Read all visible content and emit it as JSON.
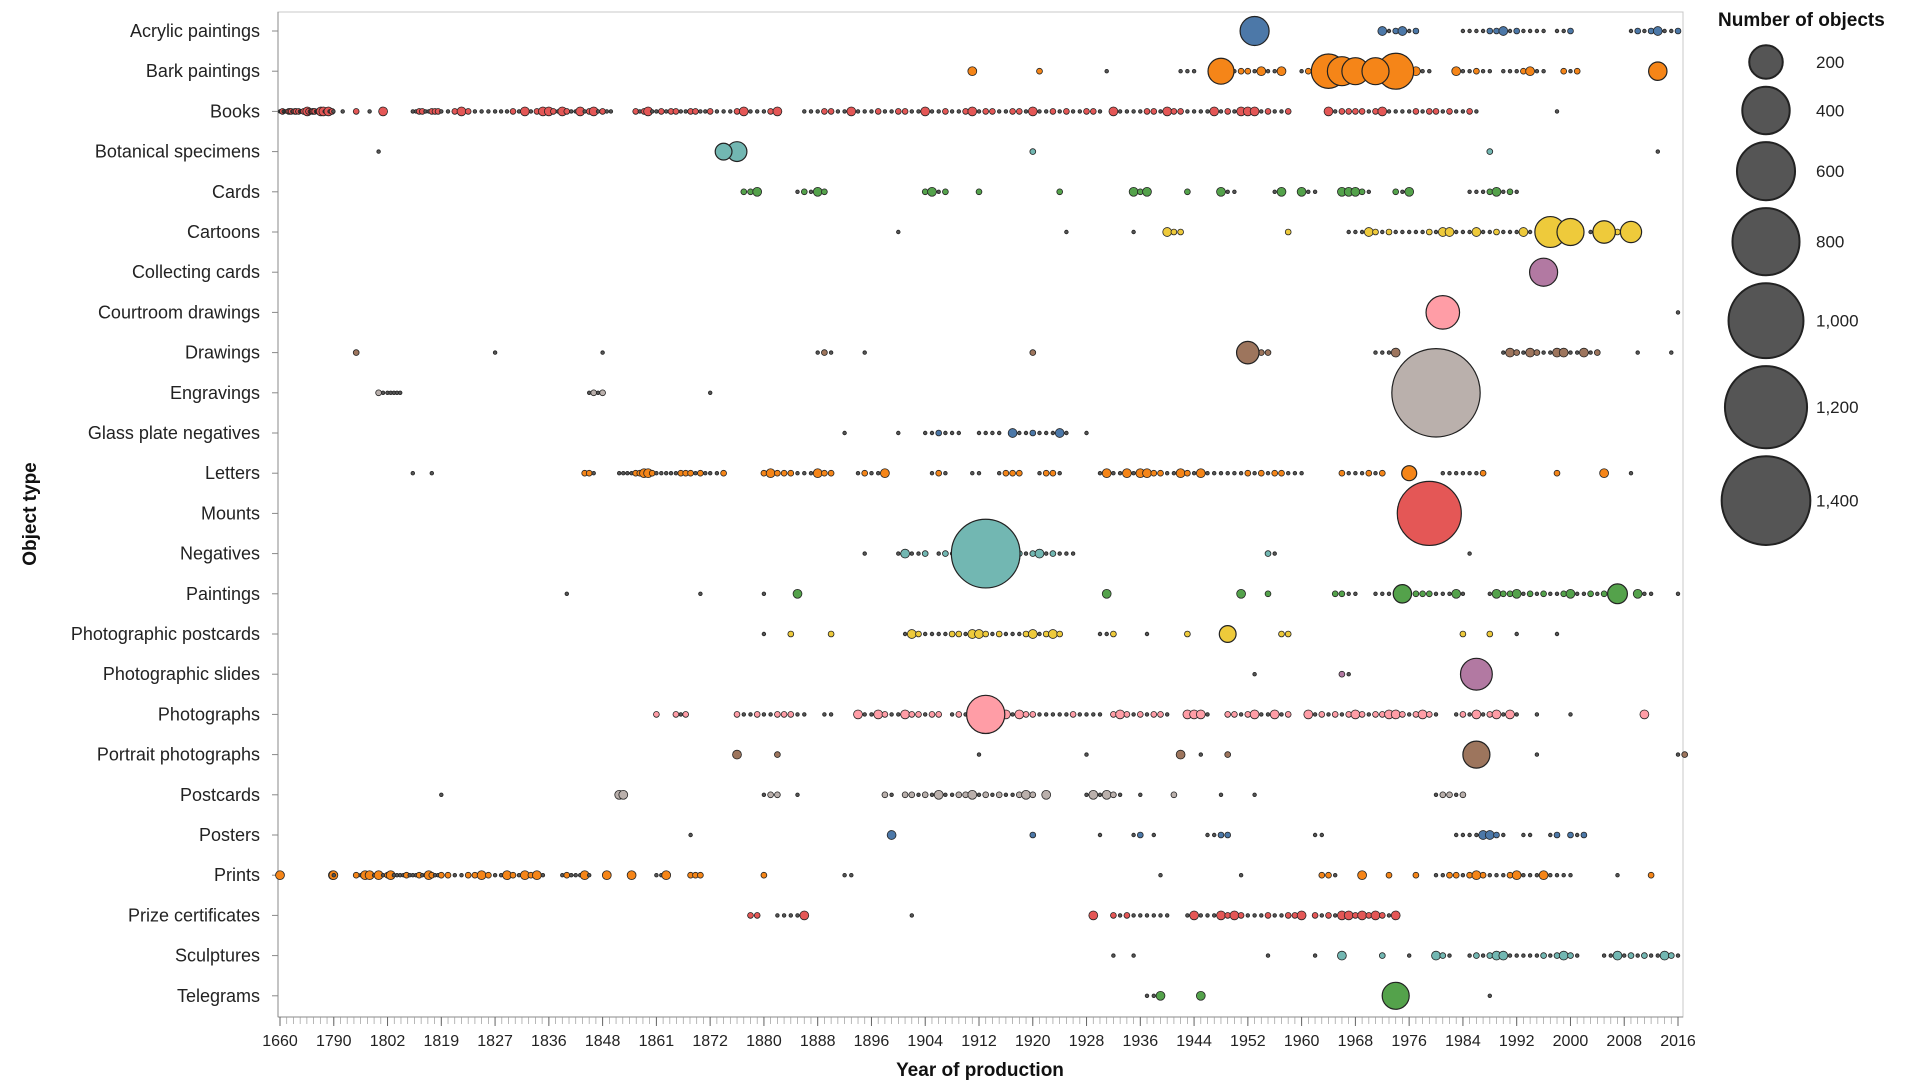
{
  "chart_data": {
    "type": "scatter",
    "title": "",
    "xlabel": "Year of production",
    "ylabel": "Object type",
    "x_tick_labels": [
      "1660",
      "1790",
      "1802",
      "1819",
      "1827",
      "1836",
      "1848",
      "1861",
      "1872",
      "1880",
      "1888",
      "1896",
      "1904",
      "1912",
      "1920",
      "1928",
      "1936",
      "1944",
      "1952",
      "1960",
      "1968",
      "1976",
      "1984",
      "1992",
      "2000",
      "2008",
      "2016"
    ],
    "categories": [
      "Acrylic paintings",
      "Bark paintings",
      "Books",
      "Botanical specimens",
      "Cards",
      "Cartoons",
      "Collecting cards",
      "Courtroom drawings",
      "Drawings",
      "Engravings",
      "Glass plate negatives",
      "Letters",
      "Mounts",
      "Negatives",
      "Paintings",
      "Photographic postcards",
      "Photographic slides",
      "Photographs",
      "Portrait photographs",
      "Postcards",
      "Posters",
      "Prints",
      "Prize certificates",
      "Sculptures",
      "Telegrams"
    ],
    "category_colors": [
      "#4c78a8",
      "#f58518",
      "#e45756",
      "#72b7b2",
      "#54a24b",
      "#eeca3b",
      "#b279a2",
      "#ff9da6",
      "#9d755d",
      "#bab0ac",
      "#4c78a8",
      "#f58518",
      "#e45756",
      "#72b7b2",
      "#54a24b",
      "#eeca3b",
      "#b279a2",
      "#ff9da6",
      "#9d755d",
      "#bab0ac",
      "#4c78a8",
      "#f58518",
      "#e45756",
      "#72b7b2",
      "#54a24b"
    ],
    "legend": {
      "title": "Number of objects",
      "values": [
        200,
        400,
        600,
        800,
        1000,
        1200,
        1400
      ],
      "labels": [
        "200",
        "400",
        "600",
        "800",
        "1,000",
        "1,200",
        "1,400"
      ]
    },
    "big_points": [
      {
        "category": "Acrylic paintings",
        "year": 1953,
        "count": 150
      },
      {
        "category": "Bark paintings",
        "year": 1948,
        "count": 120
      },
      {
        "category": "Bark paintings",
        "year": 1964,
        "count": 210
      },
      {
        "category": "Bark paintings",
        "year": 1966,
        "count": 150
      },
      {
        "category": "Bark paintings",
        "year": 1968,
        "count": 130
      },
      {
        "category": "Bark paintings",
        "year": 1971,
        "count": 130
      },
      {
        "category": "Bark paintings",
        "year": 1974,
        "count": 230
      },
      {
        "category": "Bark paintings",
        "year": 2013,
        "count": 60
      },
      {
        "category": "Botanical specimens",
        "year": 1874,
        "count": 50
      },
      {
        "category": "Botanical specimens",
        "year": 1876,
        "count": 70
      },
      {
        "category": "Cartoons",
        "year": 1997,
        "count": 170
      },
      {
        "category": "Cartoons",
        "year": 2000,
        "count": 130
      },
      {
        "category": "Cartoons",
        "year": 2005,
        "count": 90
      },
      {
        "category": "Cartoons",
        "year": 2009,
        "count": 80
      },
      {
        "category": "Collecting cards",
        "year": 1996,
        "count": 140
      },
      {
        "category": "Courtroom drawings",
        "year": 1981,
        "count": 200
      },
      {
        "category": "Drawings",
        "year": 1952,
        "count": 90
      },
      {
        "category": "Engravings",
        "year": 1980,
        "count": 1390
      },
      {
        "category": "Letters",
        "year": 1976,
        "count": 40
      },
      {
        "category": "Mounts",
        "year": 1979,
        "count": 730
      },
      {
        "category": "Negatives",
        "year": 1913,
        "count": 840
      },
      {
        "category": "Paintings",
        "year": 1975,
        "count": 60
      },
      {
        "category": "Paintings",
        "year": 2007,
        "count": 70
      },
      {
        "category": "Photographic postcards",
        "year": 1949,
        "count": 50
      },
      {
        "category": "Photographic slides",
        "year": 1986,
        "count": 180
      },
      {
        "category": "Photographs",
        "year": 1913,
        "count": 260
      },
      {
        "category": "Portrait photographs",
        "year": 1986,
        "count": 130
      },
      {
        "category": "Telegrams",
        "year": 1974,
        "count": 130
      }
    ],
    "small_point_ranges": [
      {
        "category": "Acrylic paintings",
        "ranges": [
          [
            1972,
            1977
          ],
          [
            1984,
            1996
          ],
          [
            1998,
            2000
          ],
          [
            2009,
            2016
          ]
        ]
      },
      {
        "category": "Bark paintings",
        "ranges": [
          [
            1911,
            1911
          ],
          [
            1921,
            1921
          ],
          [
            1931,
            1931
          ],
          [
            1942,
            1944
          ],
          [
            1950,
            1957
          ],
          [
            1960,
            1979
          ],
          [
            1983,
            1988
          ],
          [
            1990,
            1996
          ],
          [
            1999,
            2001
          ]
        ]
      },
      {
        "category": "Books",
        "ranges": [
          [
            1660,
            1803
          ],
          [
            1810,
            1850
          ],
          [
            1856,
            1882
          ],
          [
            1886,
            1930
          ],
          [
            1932,
            1958
          ],
          [
            1964,
            1986
          ],
          [
            1998,
            1998
          ]
        ]
      },
      {
        "category": "Botanical specimens",
        "ranges": [
          [
            1800,
            1800
          ],
          [
            1920,
            1920
          ],
          [
            1988,
            1988
          ],
          [
            2013,
            2013
          ]
        ]
      },
      {
        "category": "Cards",
        "ranges": [
          [
            1877,
            1879
          ],
          [
            1885,
            1889
          ],
          [
            1904,
            1907
          ],
          [
            1912,
            1912
          ],
          [
            1924,
            1924
          ],
          [
            1935,
            1937
          ],
          [
            1943,
            1943
          ],
          [
            1948,
            1950
          ],
          [
            1956,
            1957
          ],
          [
            1960,
            1962
          ],
          [
            1966,
            1970
          ],
          [
            1974,
            1976
          ],
          [
            1985,
            1992
          ]
        ]
      },
      {
        "category": "Cartoons",
        "ranges": [
          [
            1900,
            1900
          ],
          [
            1925,
            1925
          ],
          [
            1935,
            1935
          ],
          [
            1940,
            1942
          ],
          [
            1958,
            1958
          ],
          [
            1967,
            1996
          ],
          [
            2003,
            2010
          ]
        ]
      },
      {
        "category": "Courtroom drawings",
        "ranges": [
          [
            2016,
            2016
          ]
        ]
      },
      {
        "category": "Drawings",
        "ranges": [
          [
            1795,
            1795
          ],
          [
            1827,
            1827
          ],
          [
            1848,
            1848
          ],
          [
            1888,
            1890
          ],
          [
            1895,
            1895
          ],
          [
            1920,
            1920
          ],
          [
            1954,
            1955
          ],
          [
            1971,
            1974
          ],
          [
            1990,
            2004
          ],
          [
            2010,
            2010
          ],
          [
            2015,
            2015
          ]
        ]
      },
      {
        "category": "Engravings",
        "ranges": [
          [
            1800,
            1806
          ],
          [
            1845,
            1848
          ],
          [
            1872,
            1872
          ]
        ]
      },
      {
        "category": "Glass plate negatives",
        "ranges": [
          [
            1892,
            1892
          ],
          [
            1900,
            1900
          ],
          [
            1904,
            1909
          ],
          [
            1912,
            1915
          ],
          [
            1917,
            1925
          ],
          [
            1928,
            1928
          ]
        ]
      },
      {
        "category": "Letters",
        "ranges": [
          [
            1810,
            1810
          ],
          [
            1816,
            1816
          ],
          [
            1844,
            1846
          ],
          [
            1852,
            1874
          ],
          [
            1880,
            1890
          ],
          [
            1894,
            1898
          ],
          [
            1905,
            1907
          ],
          [
            1911,
            1912
          ],
          [
            1915,
            1918
          ],
          [
            1921,
            1924
          ],
          [
            1930,
            1960
          ],
          [
            1966,
            1972
          ],
          [
            1981,
            1987
          ],
          [
            1998,
            1998
          ],
          [
            2005,
            2005
          ],
          [
            2009,
            2009
          ]
        ]
      },
      {
        "category": "Negatives",
        "ranges": [
          [
            1895,
            1895
          ],
          [
            1900,
            1904
          ],
          [
            1906,
            1910
          ],
          [
            1914,
            1926
          ],
          [
            1955,
            1956
          ],
          [
            1985,
            1985
          ]
        ]
      },
      {
        "category": "Paintings",
        "ranges": [
          [
            1840,
            1840
          ],
          [
            1870,
            1870
          ],
          [
            1880,
            1880
          ],
          [
            1885,
            1885
          ],
          [
            1931,
            1931
          ],
          [
            1951,
            1951
          ],
          [
            1955,
            1955
          ],
          [
            1965,
            1968
          ],
          [
            1971,
            1973
          ],
          [
            1977,
            1984
          ],
          [
            1988,
            2005
          ],
          [
            2010,
            2012
          ],
          [
            2016,
            2016
          ]
        ]
      },
      {
        "category": "Photographic postcards",
        "ranges": [
          [
            1880,
            1880
          ],
          [
            1884,
            1884
          ],
          [
            1890,
            1890
          ],
          [
            1901,
            1924
          ],
          [
            1930,
            1932
          ],
          [
            1937,
            1937
          ],
          [
            1943,
            1943
          ],
          [
            1957,
            1958
          ],
          [
            1984,
            1984
          ],
          [
            1988,
            1988
          ],
          [
            1992,
            1992
          ],
          [
            1998,
            1998
          ]
        ]
      },
      {
        "category": "Photographic slides",
        "ranges": [
          [
            1953,
            1953
          ],
          [
            1966,
            1967
          ]
        ]
      },
      {
        "category": "Photographs",
        "ranges": [
          [
            1861,
            1861
          ],
          [
            1865,
            1867
          ],
          [
            1876,
            1886
          ],
          [
            1889,
            1890
          ],
          [
            1894,
            1906
          ],
          [
            1908,
            1913
          ],
          [
            1916,
            1930
          ],
          [
            1932,
            1940
          ],
          [
            1943,
            1946
          ],
          [
            1949,
            1958
          ],
          [
            1961,
            1980
          ],
          [
            1983,
            1992
          ],
          [
            1995,
            1995
          ],
          [
            2000,
            2000
          ],
          [
            2011,
            2011
          ]
        ]
      },
      {
        "category": "Portrait photographs",
        "ranges": [
          [
            1876,
            1876
          ],
          [
            1882,
            1882
          ],
          [
            1912,
            1912
          ],
          [
            1928,
            1928
          ],
          [
            1942,
            1942
          ],
          [
            1945,
            1945
          ],
          [
            1949,
            1949
          ],
          [
            1995,
            1995
          ],
          [
            2016,
            2017
          ]
        ]
      },
      {
        "category": "Postcards",
        "ranges": [
          [
            1819,
            1819
          ],
          [
            1852,
            1853
          ],
          [
            1880,
            1882
          ],
          [
            1885,
            1885
          ],
          [
            1898,
            1899
          ],
          [
            1901,
            1920
          ],
          [
            1922,
            1922
          ],
          [
            1928,
            1933
          ],
          [
            1936,
            1936
          ],
          [
            1941,
            1941
          ],
          [
            1948,
            1948
          ],
          [
            1953,
            1953
          ],
          [
            1980,
            1984
          ]
        ]
      },
      {
        "category": "Posters",
        "ranges": [
          [
            1868,
            1868
          ],
          [
            1899,
            1899
          ],
          [
            1920,
            1920
          ],
          [
            1930,
            1930
          ],
          [
            1935,
            1936
          ],
          [
            1938,
            1938
          ],
          [
            1946,
            1949
          ],
          [
            1962,
            1963
          ],
          [
            1983,
            1990
          ],
          [
            1993,
            1994
          ],
          [
            1997,
            1998
          ],
          [
            2000,
            2002
          ]
        ]
      },
      {
        "category": "Prints",
        "ranges": [
          [
            1660,
            1660
          ],
          [
            1785,
            1790
          ],
          [
            1795,
            1835
          ],
          [
            1839,
            1845
          ],
          [
            1849,
            1849
          ],
          [
            1855,
            1855
          ],
          [
            1861,
            1863
          ],
          [
            1868,
            1870
          ],
          [
            1880,
            1880
          ],
          [
            1892,
            1893
          ],
          [
            1939,
            1939
          ],
          [
            1951,
            1951
          ],
          [
            1963,
            1965
          ],
          [
            1969,
            1969
          ],
          [
            1973,
            1973
          ],
          [
            1977,
            1977
          ],
          [
            1980,
            2000
          ],
          [
            2007,
            2007
          ],
          [
            2012,
            2012
          ]
        ]
      },
      {
        "category": "Prize certificates",
        "ranges": [
          [
            1878,
            1879
          ],
          [
            1882,
            1886
          ],
          [
            1902,
            1902
          ],
          [
            1929,
            1929
          ],
          [
            1932,
            1940
          ],
          [
            1943,
            1960
          ],
          [
            1962,
            1974
          ]
        ]
      },
      {
        "category": "Sculptures",
        "ranges": [
          [
            1932,
            1932
          ],
          [
            1935,
            1935
          ],
          [
            1955,
            1955
          ],
          [
            1962,
            1962
          ],
          [
            1966,
            1966
          ],
          [
            1972,
            1972
          ],
          [
            1976,
            1976
          ],
          [
            1980,
            1982
          ],
          [
            1985,
            2001
          ],
          [
            2005,
            2016
          ]
        ]
      },
      {
        "category": "Telegrams",
        "ranges": [
          [
            1937,
            1939
          ],
          [
            1945,
            1945
          ],
          [
            1988,
            1988
          ]
        ]
      }
    ]
  }
}
